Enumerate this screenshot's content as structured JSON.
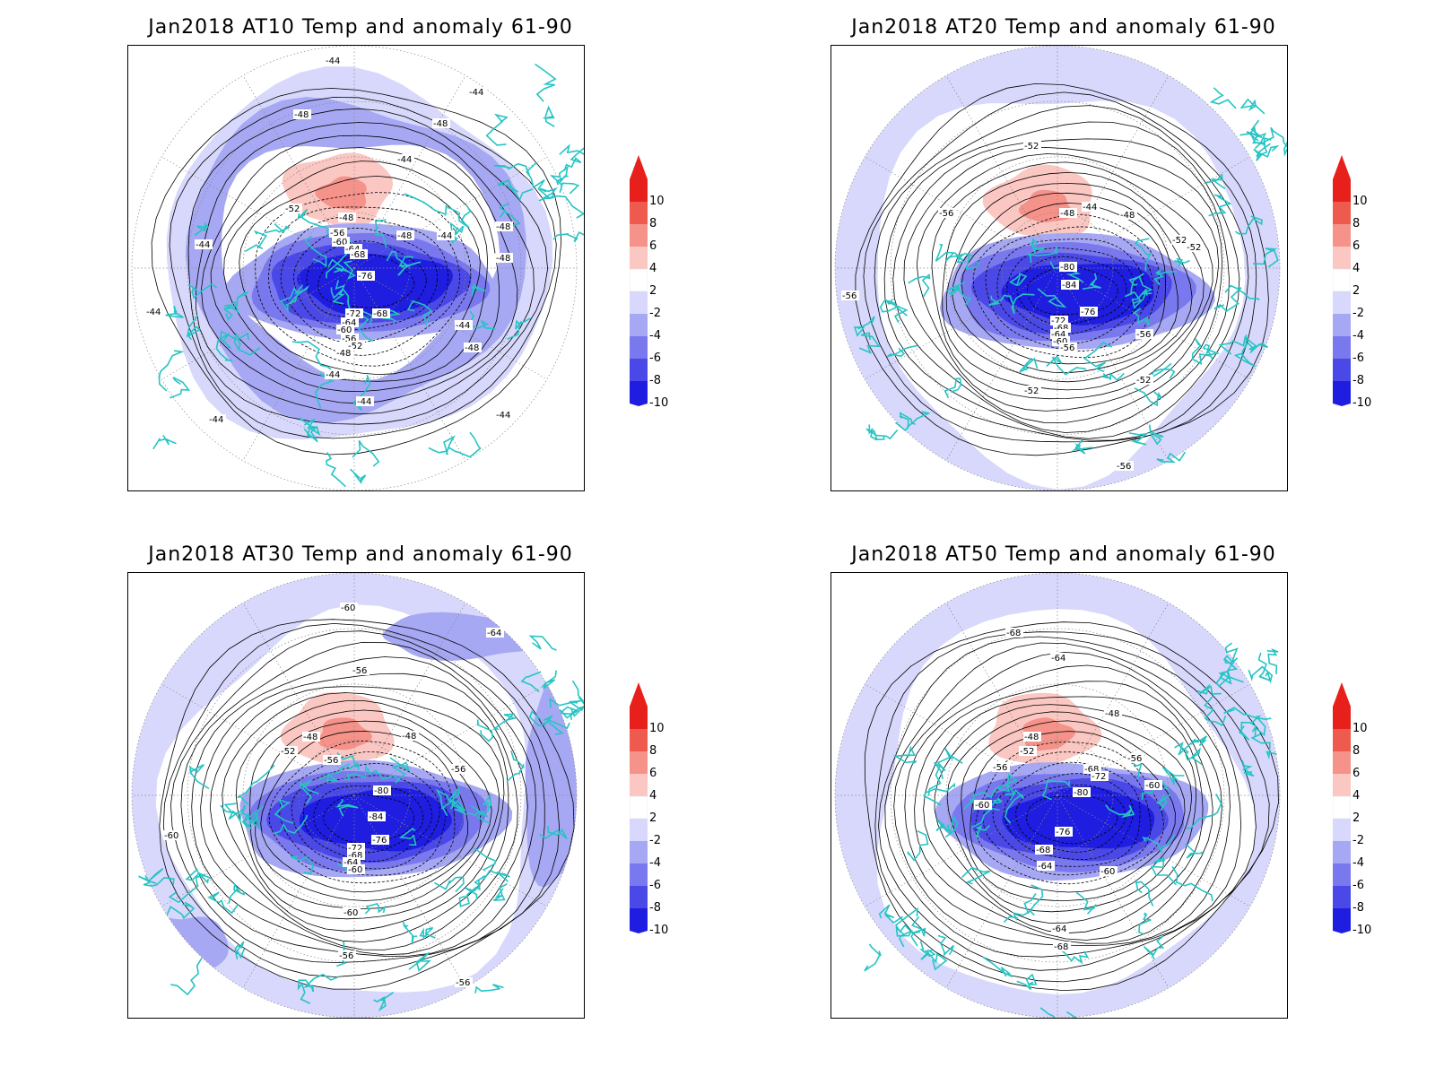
{
  "panels": [
    {
      "title": "Jan2018 AT10 Temp and anomaly 61-90",
      "level": "AT10",
      "contour_labels": [
        "-44",
        "-44",
        "-48",
        "-48",
        "-44",
        "-52",
        "-48",
        "-48",
        "-44",
        "-48",
        "-56",
        "-60",
        "-64",
        "-68",
        "-76",
        "-48",
        "-72",
        "-68",
        "-64",
        "-60",
        "-56",
        "-52",
        "-48",
        "-44",
        "-48",
        "-44",
        "-44",
        "-44",
        "-44",
        "-44",
        "-44"
      ]
    },
    {
      "title": "Jan2018 AT20 Temp and anomaly 61-90",
      "level": "AT20",
      "contour_labels": [
        "-52",
        "-56",
        "-48",
        "-44",
        "-48",
        "-52",
        "-52",
        "-80",
        "-84",
        "-56",
        "-76",
        "-72",
        "-68",
        "-64",
        "-60",
        "-56",
        "-52",
        "-52",
        "-56",
        "-56"
      ]
    },
    {
      "title": "Jan2018 AT30 Temp and anomaly 61-90",
      "level": "AT30",
      "contour_labels": [
        "-60",
        "-64",
        "-56",
        "-48",
        "-48",
        "-52",
        "-56",
        "-56",
        "-80",
        "-84",
        "-60",
        "-76",
        "-72",
        "-68",
        "-64",
        "-60",
        "-56",
        "-56",
        "-60"
      ]
    },
    {
      "title": "Jan2018 AT50 Temp and anomaly 61-90",
      "level": "AT50",
      "contour_labels": [
        "-68",
        "-64",
        "-48",
        "-48",
        "-52",
        "-56",
        "-56",
        "-68",
        "-72",
        "-80",
        "-60",
        "-60",
        "-76",
        "-68",
        "-64",
        "-60",
        "-64",
        "-68"
      ]
    }
  ],
  "colorbar": {
    "labels": [
      "10",
      "8",
      "6",
      "4",
      "2",
      "-2",
      "-4",
      "-6",
      "-8",
      "-10"
    ],
    "colors": [
      "#e8201c",
      "#ef5a4e",
      "#f5928a",
      "#fbc7c2",
      "#ffffff",
      "#d7d8fb",
      "#a7a8f3",
      "#7a78ee",
      "#4a48e6",
      "#1f1ee0"
    ]
  },
  "colors": {
    "coastline": "#26c4c4",
    "contour": "#000000"
  }
}
